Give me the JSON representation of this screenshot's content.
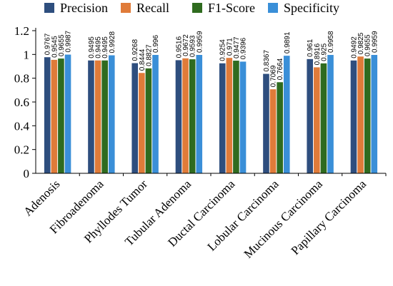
{
  "chart_data": {
    "type": "bar",
    "categories": [
      "Adenosis",
      "Fibroadenoma",
      "Phyllodes Tumor",
      "Tubular Adenoma",
      "Ductal Carcinoma",
      "Lobular Carcinoma",
      "Mucinous Carcinoma",
      "Papillary Carcinoma"
    ],
    "series": [
      {
        "name": "Precision",
        "color": "#2e4e7e",
        "values": [
          0.9767,
          0.9495,
          0.9268,
          0.9516,
          0.9254,
          0.8367,
          0.961,
          0.9492
        ]
      },
      {
        "name": "Recall",
        "color": "#e07b39",
        "values": [
          0.9545,
          0.9495,
          0.8444,
          0.9672,
          0.971,
          0.7069,
          0.8916,
          0.9825
        ]
      },
      {
        "name": "F1-Score",
        "color": "#2f6b1f",
        "values": [
          0.9655,
          0.9495,
          0.8827,
          0.9593,
          0.9477,
          0.7664,
          0.925,
          0.9655
        ]
      },
      {
        "name": "Specificity",
        "color": "#3a8fd8",
        "values": [
          0.9987,
          0.9928,
          0.996,
          0.9959,
          0.9396,
          0.9891,
          0.9958,
          0.9959
        ]
      }
    ],
    "data_labels": [
      [
        "0.9767",
        "0.9545",
        "0.9655",
        "0.9987"
      ],
      [
        "0.9495",
        "0.9495",
        "0.9495",
        "0.9928"
      ],
      [
        "0.9268",
        "0.8444",
        "0.8827",
        "0.996"
      ],
      [
        "0.9516",
        "0.9672",
        "0.9593",
        "0.9959"
      ],
      [
        "0.9254",
        "0.971",
        "0.9477",
        "0.9396"
      ],
      [
        "0.8367",
        "0.7069",
        "0.7664",
        "0.9891"
      ],
      [
        "0.961",
        "0.8916",
        "0.925",
        "0.9958"
      ],
      [
        "0.9492",
        "0.9825",
        "0.9655",
        "0.9959"
      ]
    ],
    "yticks": [
      "0",
      "0.2",
      "0.4",
      "0.6",
      "0.8",
      "1",
      "1.2"
    ],
    "ylim": [
      0,
      1.2
    ],
    "legend_position": "top",
    "grid": false
  }
}
